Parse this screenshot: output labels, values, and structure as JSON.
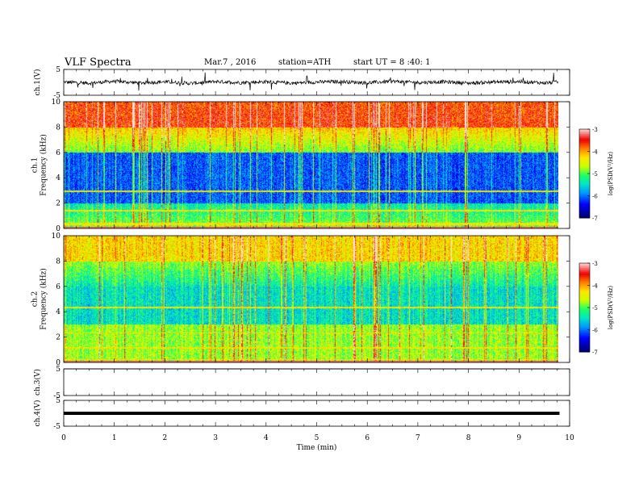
{
  "header": {
    "title": "VLF  Spectra",
    "date": "Mar.7  , 2016",
    "station": "station=ATH",
    "start": "start  UT  =   8 :40: 1"
  },
  "colorbar": {
    "label": "log(PSD(V²/Hz)",
    "ticks": [
      "-3",
      "-4",
      "-5",
      "-6",
      "-7"
    ],
    "colors": [
      "#000080",
      "#0000ff",
      "#00bfff",
      "#00ff80",
      "#ffff00",
      "#ff8000",
      "#ff0000",
      "#ffe0e0"
    ]
  },
  "chart_data": [
    {
      "type": "line",
      "panel": "ch1-waveform",
      "ylabel": "ch.1(V)",
      "ylim": [
        -5,
        5
      ],
      "yticks": [
        "5",
        "-5"
      ],
      "x": [
        0,
        0.5,
        1,
        1.5,
        2,
        2.5,
        3,
        3.5,
        4,
        4.5,
        5,
        5.5,
        6,
        6.5,
        7,
        7.5,
        8,
        8.5,
        9,
        9.5,
        9.8
      ],
      "values": [
        0.1,
        -0.3,
        0.4,
        -0.2,
        0.2,
        -0.4,
        0.3,
        -0.1,
        0.2,
        -0.3,
        0.1,
        0.3,
        -0.2,
        0.4,
        -0.1,
        0.2,
        -0.3,
        0.1,
        0.3,
        -0.2,
        0.1
      ]
    },
    {
      "type": "heatmap",
      "panel": "ch1-spectrogram",
      "ylabel": "ch.1",
      "ylabel2": "Frequency  (kHz)",
      "ylim": [
        0,
        10
      ],
      "yticks": [
        "0",
        "2",
        "4",
        "6",
        "8",
        "10"
      ],
      "colorscale_label": "log(PSD(V²/Hz)",
      "clim": [
        -7,
        -3
      ]
    },
    {
      "type": "heatmap",
      "panel": "ch2-spectrogram",
      "ylabel": "ch.2",
      "ylabel2": "Frequency  (kHz)",
      "ylim": [
        0,
        10
      ],
      "yticks": [
        "0",
        "2",
        "4",
        "6",
        "8",
        "10"
      ],
      "colorscale_label": "log(PSD(V²/Hz)",
      "clim": [
        -7,
        -3
      ]
    },
    {
      "type": "line",
      "panel": "ch3-waveform",
      "ylabel": "ch.3(V)",
      "ylim": [
        -5,
        5
      ],
      "yticks": [
        "5",
        "-5"
      ],
      "x": [
        0,
        9.8
      ],
      "values": [
        5,
        5
      ]
    },
    {
      "type": "line",
      "panel": "ch4-waveform",
      "ylabel": "ch.4(V)",
      "ylim": [
        -5,
        5
      ],
      "yticks": [
        "5",
        "-5"
      ],
      "x": [
        0,
        9.8
      ],
      "values": [
        0,
        0
      ]
    }
  ],
  "x_axis": {
    "label": "Time  (min)",
    "ticks": [
      "0",
      "1",
      "2",
      "3",
      "4",
      "5",
      "6",
      "7",
      "8",
      "9",
      "10"
    ],
    "xlim": [
      0,
      10
    ]
  }
}
